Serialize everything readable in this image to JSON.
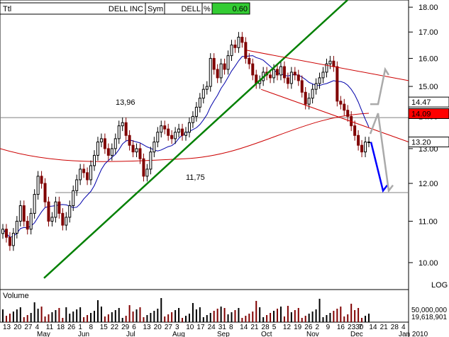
{
  "header": {
    "ttl_label": "Ttl",
    "name": "DELL INC",
    "sym_label": "Sym",
    "symbol": "DELL",
    "pct_label": "%",
    "pct_value": "0.60",
    "pct_color": "#33cc33"
  },
  "chart_data": {
    "type": "candlestick",
    "y_scale": "log",
    "ylim": [
      9.6,
      18.3
    ],
    "y_ticks": [
      "10.00",
      "11.00",
      "12.00",
      "13.00",
      "14.00",
      "15.00",
      "16.00",
      "17.00",
      "18.00"
    ],
    "scale_label": "LOG",
    "price_labels": [
      {
        "text": "14.47",
        "value": 14.47,
        "bg": "#ffffff",
        "fg": "#000000"
      },
      {
        "text": "14.09",
        "value": 14.09,
        "bg": "#ff0000",
        "fg": "#ffffff"
      },
      {
        "text": "13.20",
        "value": 13.2,
        "bg": "#ffffff",
        "fg": "#000000"
      }
    ],
    "annotations": [
      {
        "text": "13,96",
        "value": 13.96
      },
      {
        "text": "11,75",
        "value": 11.75
      }
    ],
    "x_day_labels": [
      "13",
      "20",
      "27",
      "4",
      "11",
      "18",
      "26",
      "1",
      "8",
      "15",
      "22",
      "29",
      "6",
      "13",
      "20",
      "27",
      "3",
      "10",
      "17",
      "24",
      "31",
      "8",
      "14",
      "21",
      "28",
      "5",
      "12",
      "19",
      "26",
      "2",
      "9",
      "16",
      "2330",
      "7",
      "14",
      "21",
      "28",
      "4"
    ],
    "x_month_labels": [
      "May",
      "Jun",
      "Jul",
      "Aug",
      "Sep",
      "Oct",
      "Nov",
      "Dec",
      "Jan 2010"
    ],
    "volume": {
      "label": "Volume",
      "ticks": [
        "50,000,000",
        "19,618,901"
      ]
    },
    "series_colors": {
      "up": "#000000",
      "down": "#800000",
      "ma_short": "#0000aa",
      "ma_long": "#cc0000",
      "trendline": "#008000",
      "channel": "#cc0000",
      "projection_down": "#0000ff",
      "projection_up": "#aaaaaa"
    },
    "close_points": [
      [
        0,
        10.8
      ],
      [
        5,
        10.6
      ],
      [
        10,
        10.4
      ],
      [
        15,
        10.7
      ],
      [
        20,
        11.0
      ],
      [
        25,
        11.4
      ],
      [
        30,
        11.0
      ],
      [
        35,
        10.8
      ],
      [
        40,
        11.2
      ],
      [
        45,
        11.7
      ],
      [
        50,
        12.2
      ],
      [
        55,
        12.0
      ],
      [
        60,
        11.5
      ],
      [
        65,
        11.0
      ],
      [
        70,
        11.1
      ],
      [
        75,
        11.5
      ],
      [
        80,
        11.2
      ],
      [
        85,
        10.9
      ],
      [
        90,
        11.1
      ],
      [
        95,
        11.4
      ],
      [
        100,
        11.8
      ],
      [
        105,
        12.1
      ],
      [
        110,
        12.4
      ],
      [
        115,
        12.3
      ],
      [
        120,
        12.1
      ],
      [
        125,
        12.5
      ],
      [
        130,
        12.8
      ],
      [
        135,
        13.2
      ],
      [
        140,
        13.3
      ],
      [
        145,
        13.0
      ],
      [
        150,
        12.8
      ],
      [
        155,
        13.0
      ],
      [
        160,
        13.3
      ],
      [
        165,
        13.7
      ],
      [
        170,
        13.8
      ],
      [
        175,
        13.4
      ],
      [
        180,
        13.1
      ],
      [
        185,
        12.9
      ],
      [
        190,
        13.0
      ],
      [
        195,
        12.7
      ],
      [
        200,
        12.2
      ],
      [
        205,
        12.4
      ],
      [
        210,
        12.9
      ],
      [
        215,
        13.2
      ],
      [
        220,
        13.5
      ],
      [
        225,
        13.7
      ],
      [
        230,
        13.6
      ],
      [
        235,
        13.4
      ],
      [
        240,
        13.3
      ],
      [
        245,
        13.5
      ],
      [
        250,
        13.6
      ],
      [
        255,
        13.4
      ],
      [
        260,
        13.5
      ],
      [
        265,
        13.8
      ],
      [
        270,
        14.0
      ],
      [
        275,
        14.3
      ],
      [
        280,
        14.6
      ],
      [
        285,
        14.9
      ],
      [
        290,
        15.0
      ],
      [
        295,
        16.0
      ],
      [
        300,
        15.6
      ],
      [
        305,
        15.3
      ],
      [
        310,
        15.8
      ],
      [
        315,
        15.6
      ],
      [
        320,
        16.1
      ],
      [
        325,
        16.5
      ],
      [
        330,
        16.4
      ],
      [
        335,
        16.8
      ],
      [
        340,
        16.6
      ],
      [
        345,
        16.0
      ],
      [
        350,
        15.8
      ],
      [
        355,
        15.4
      ],
      [
        360,
        15.1
      ],
      [
        365,
        15.2
      ],
      [
        370,
        15.5
      ],
      [
        375,
        15.4
      ],
      [
        380,
        15.3
      ],
      [
        385,
        15.6
      ],
      [
        390,
        15.4
      ],
      [
        395,
        15.7
      ],
      [
        400,
        15.3
      ],
      [
        405,
        15.1
      ],
      [
        410,
        15.5
      ],
      [
        415,
        15.4
      ],
      [
        420,
        15.2
      ],
      [
        425,
        14.8
      ],
      [
        430,
        14.4
      ],
      [
        435,
        14.6
      ],
      [
        440,
        14.9
      ],
      [
        445,
        15.1
      ],
      [
        450,
        15.3
      ],
      [
        455,
        15.5
      ],
      [
        460,
        15.8
      ],
      [
        465,
        15.9
      ],
      [
        470,
        15.7
      ],
      [
        475,
        14.5
      ],
      [
        480,
        14.4
      ],
      [
        485,
        14.2
      ],
      [
        490,
        14.0
      ],
      [
        495,
        13.7
      ],
      [
        500,
        13.4
      ],
      [
        505,
        13.1
      ],
      [
        510,
        12.9
      ],
      [
        515,
        13.2
      ],
      [
        520,
        13.2
      ]
    ]
  }
}
